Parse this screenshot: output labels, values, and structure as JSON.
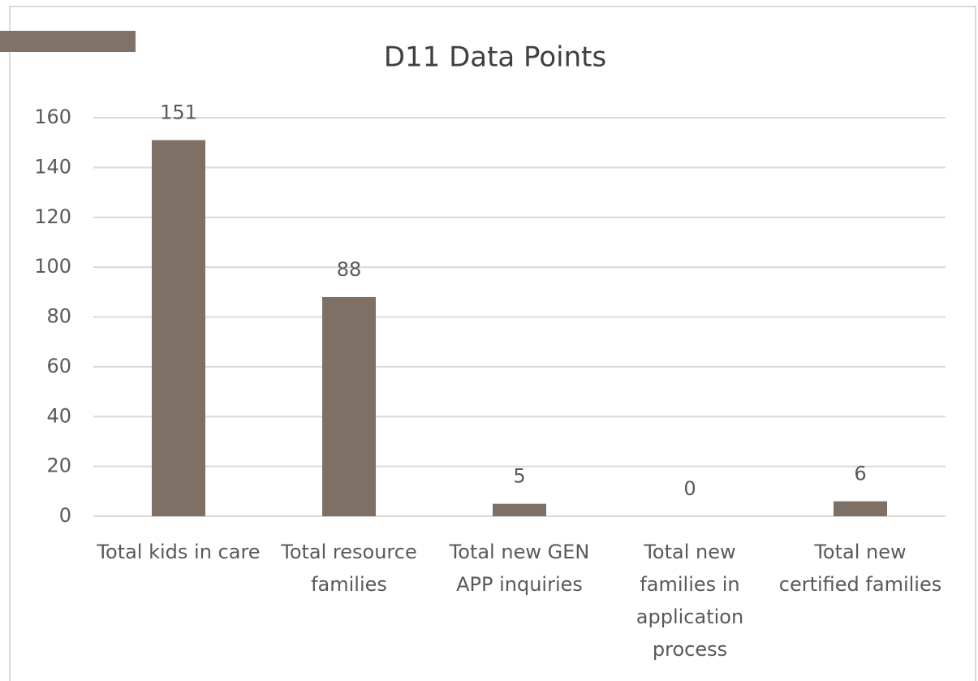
{
  "chart_data": {
    "type": "bar",
    "title": "D11 Data Points",
    "categories": [
      "Total kids in care",
      "Total resource families",
      "Total new GEN APP inquiries",
      "Total new families in application process",
      "Total new certified families"
    ],
    "values": [
      151,
      88,
      5,
      0,
      6
    ],
    "color": "#7f7065",
    "ylim": [
      0,
      160
    ],
    "yticks": [
      0,
      20,
      40,
      60,
      80,
      100,
      120,
      140,
      160
    ],
    "grid": true
  }
}
